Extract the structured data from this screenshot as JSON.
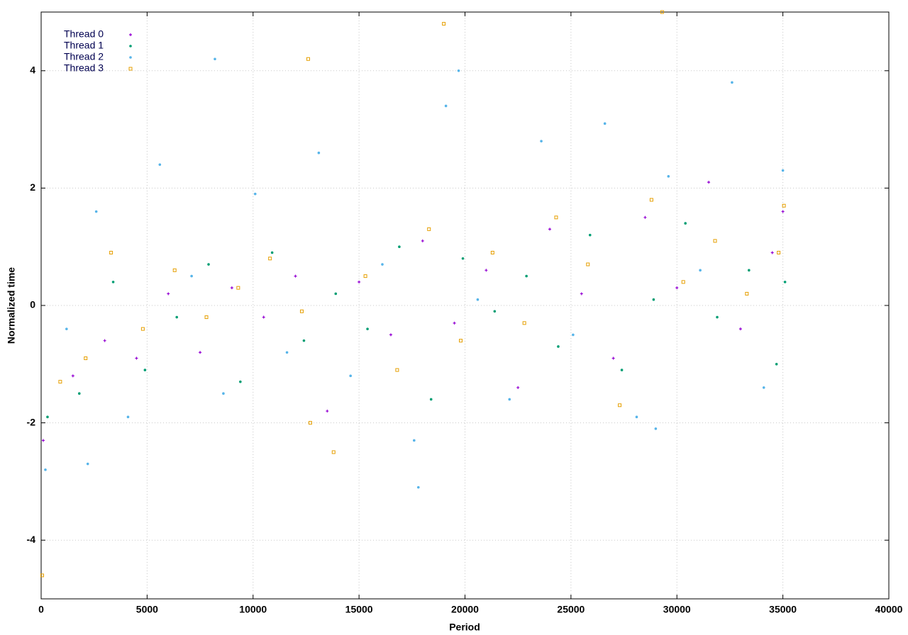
{
  "chart_data": {
    "type": "scatter",
    "x_label": "Period",
    "y_label": "Normalized time",
    "xlim": [
      0,
      40000
    ],
    "xticks": [
      0,
      5000,
      10000,
      15000,
      20000,
      25000,
      30000,
      35000,
      40000
    ],
    "ylim": [
      -5,
      5
    ],
    "yticks": [
      -4,
      -2,
      0,
      2,
      4
    ],
    "grid": true,
    "legend": "top-left",
    "series": [
      {
        "name": "Thread 0",
        "color": "#9400d3",
        "marker": "plus",
        "x": [
          100,
          1500,
          3000,
          4500,
          6000,
          7500,
          9000,
          10500,
          12000,
          13500,
          15000,
          16500,
          18000,
          19500,
          21000,
          22500,
          24000,
          25500,
          27000,
          28500,
          30000,
          31500,
          33000,
          34500,
          35000
        ],
        "values": [
          -2.3,
          -1.2,
          -0.6,
          -0.9,
          0.2,
          -0.8,
          0.3,
          -0.2,
          0.5,
          -1.8,
          0.4,
          -0.5,
          1.1,
          -0.3,
          0.6,
          -1.4,
          1.3,
          0.2,
          -0.9,
          1.5,
          0.3,
          2.1,
          -0.4,
          0.9,
          1.6
        ]
      },
      {
        "name": "Thread 1",
        "color": "#009e73",
        "marker": "dot",
        "x": [
          300,
          1800,
          3400,
          4900,
          6400,
          7900,
          9400,
          10900,
          12400,
          13900,
          15400,
          16900,
          18400,
          19900,
          21400,
          22900,
          24400,
          25900,
          27400,
          28900,
          30400,
          31900,
          33400,
          34700,
          35100
        ],
        "values": [
          -1.9,
          -1.5,
          0.4,
          -1.1,
          -0.2,
          0.7,
          -1.3,
          0.9,
          -0.6,
          0.2,
          -0.4,
          1.0,
          -1.6,
          0.8,
          -0.1,
          0.5,
          -0.7,
          1.2,
          -1.1,
          0.1,
          1.4,
          -0.2,
          0.6,
          -1.0,
          0.4
        ]
      },
      {
        "name": "Thread 2",
        "color": "#56b4e9",
        "marker": "dot",
        "x": [
          200,
          1200,
          2600,
          4100,
          5600,
          7100,
          8600,
          10100,
          11600,
          13100,
          14600,
          16100,
          17600,
          19100,
          20600,
          22100,
          23600,
          25100,
          26600,
          28100,
          29600,
          31100,
          32600,
          34100,
          35000,
          8200,
          19700,
          29000,
          17800,
          2200
        ],
        "values": [
          -2.8,
          -0.4,
          1.6,
          -1.9,
          2.4,
          0.5,
          -1.5,
          1.9,
          -0.8,
          2.6,
          -1.2,
          0.7,
          -2.3,
          3.4,
          0.1,
          -1.6,
          2.8,
          -0.5,
          3.1,
          -1.9,
          2.2,
          0.6,
          3.8,
          -1.4,
          2.3,
          4.2,
          4.0,
          -2.1,
          -3.1,
          -2.7
        ]
      },
      {
        "name": "Thread 3",
        "color": "#e69f00",
        "marker": "square",
        "x": [
          50,
          900,
          2100,
          3300,
          4800,
          6300,
          7800,
          9300,
          10800,
          12300,
          12700,
          13800,
          15300,
          16800,
          18300,
          19800,
          21300,
          22800,
          24300,
          25800,
          27300,
          28800,
          30300,
          31800,
          33300,
          34800,
          35050,
          19000,
          29300,
          12600
        ],
        "values": [
          -4.6,
          -1.3,
          -0.9,
          0.9,
          -0.4,
          0.6,
          -0.2,
          0.3,
          0.8,
          -0.1,
          -2.0,
          -2.5,
          0.5,
          -1.1,
          1.3,
          -0.6,
          0.9,
          -0.3,
          1.5,
          0.7,
          -1.7,
          1.8,
          0.4,
          1.1,
          0.2,
          0.9,
          1.7,
          4.8,
          5.0,
          4.2
        ]
      }
    ]
  }
}
